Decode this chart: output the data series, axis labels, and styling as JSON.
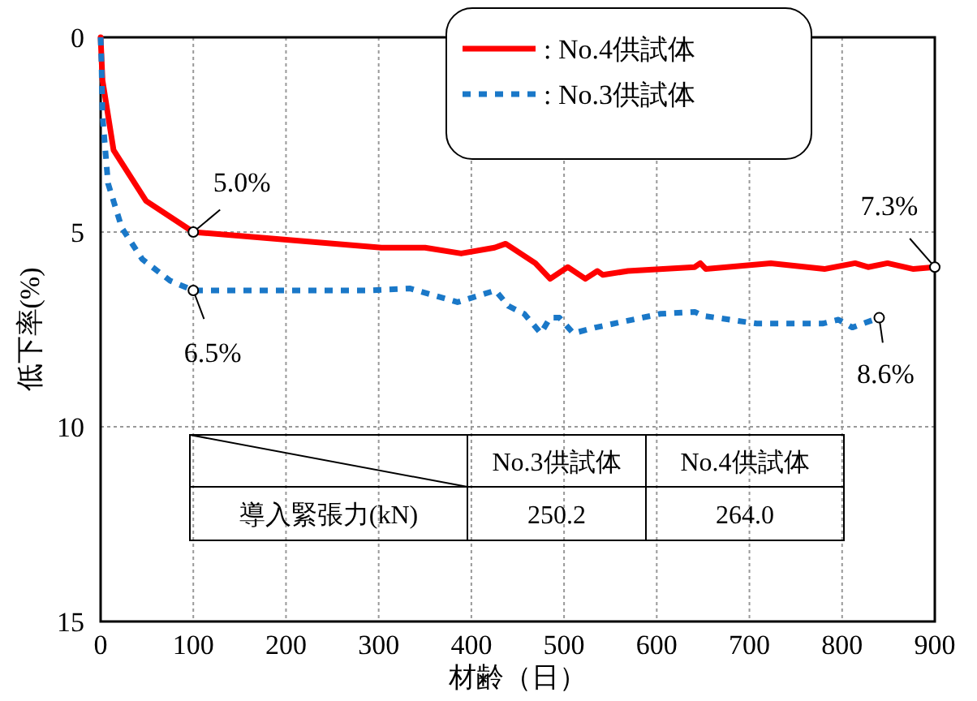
{
  "chart_data": {
    "type": "line",
    "xlabel": "材齢（日）",
    "ylabel": "低下率(%)",
    "xlim": [
      0,
      900
    ],
    "xticks": [
      0,
      100,
      200,
      300,
      400,
      500,
      600,
      700,
      800,
      900
    ],
    "ylim": [
      15,
      0
    ],
    "yticks": [
      0,
      5,
      10,
      15
    ],
    "grid": true,
    "legend": "top right",
    "series": [
      {
        "name": ": No.4供試体",
        "color": "#ff0000",
        "line_style": "solid",
        "x": [
          0,
          2,
          14,
          49,
          100,
          303,
          350,
          389,
          425,
          437,
          469,
          485,
          504,
          523,
          536,
          542,
          569,
          641,
          647,
          653,
          723,
          781,
          814,
          828,
          849,
          877,
          900
        ],
        "values": [
          0,
          1.1,
          2.9,
          4.2,
          5.0,
          5.4,
          5.4,
          5.55,
          5.4,
          5.3,
          5.8,
          6.2,
          5.9,
          6.2,
          6.0,
          6.1,
          6.0,
          5.9,
          5.8,
          5.95,
          5.8,
          5.95,
          5.8,
          5.9,
          5.8,
          5.95,
          5.9
        ]
      },
      {
        "name": ": No.3供試体",
        "color": "#1a78c8",
        "line_style": "dashed",
        "x": [
          0,
          1,
          2,
          8,
          23,
          45,
          75,
          100,
          290,
          334,
          385,
          426,
          440,
          457,
          475,
          485,
          495,
          510,
          534,
          604,
          641,
          650,
          708,
          779,
          796,
          811,
          840
        ],
        "values": [
          0,
          0.7,
          2.0,
          3.75,
          4.9,
          5.7,
          6.25,
          6.5,
          6.5,
          6.45,
          6.8,
          6.5,
          6.9,
          7.1,
          7.6,
          7.2,
          7.2,
          7.6,
          7.45,
          7.1,
          7.05,
          7.15,
          7.35,
          7.35,
          7.25,
          7.45,
          7.2
        ]
      }
    ],
    "annotations": [
      {
        "text": "5.0%",
        "x": 100,
        "y": 5.0
      },
      {
        "text": "6.5%",
        "x": 100,
        "y": 6.5
      },
      {
        "text": "7.3%",
        "x": 900,
        "y": 5.9
      },
      {
        "text": "8.6%",
        "x": 840,
        "y": 7.2
      },
      "No.3供試体",
      "No.4供試体",
      "導入緊張力(kN)",
      "250.2",
      "264.0"
    ]
  }
}
